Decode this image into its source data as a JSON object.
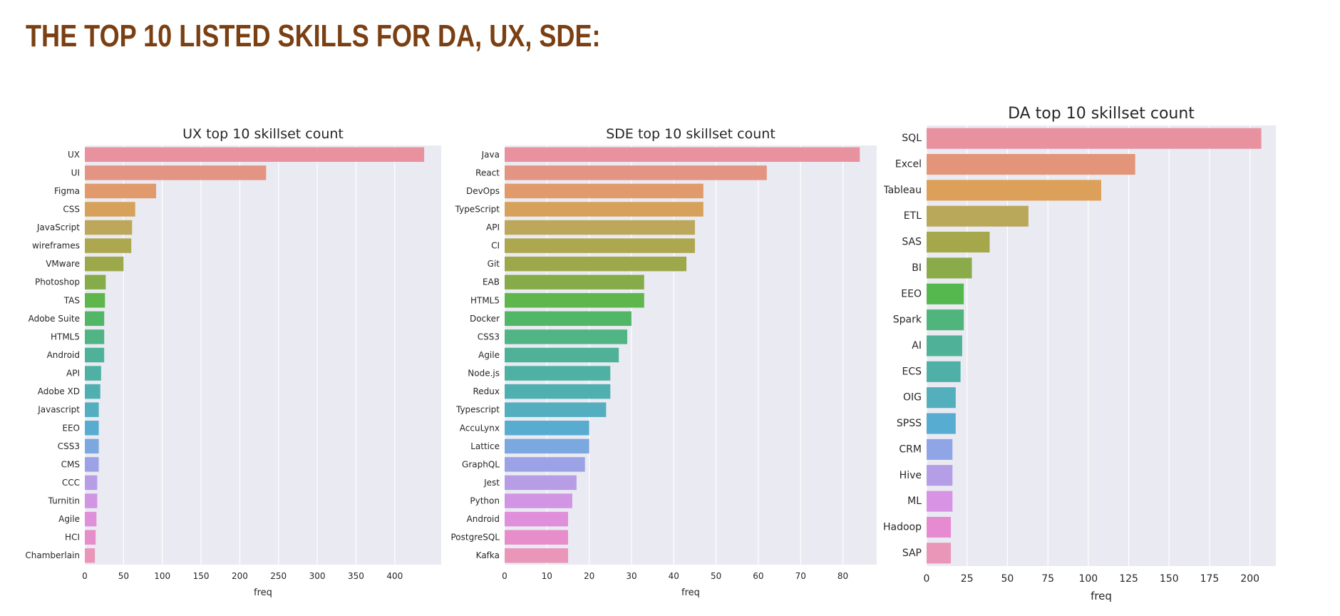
{
  "page": {
    "title": "THE TOP 10 LISTED SKILLS FOR DA, UX, SDE:"
  },
  "chart_data": [
    {
      "id": "ux",
      "type": "bar",
      "orientation": "horizontal",
      "title": "UX top 10 skillset count",
      "xlabel": "freq",
      "ylabel": "",
      "xlim": [
        0,
        460
      ],
      "xticks": [
        0,
        50,
        100,
        150,
        200,
        250,
        300,
        350,
        400
      ],
      "grid": true,
      "categories": [
        "UX",
        "UI",
        "Figma",
        "CSS",
        "JavaScript",
        "wireframes",
        "VMware",
        "Photoshop",
        "TAS",
        "Adobe Suite",
        "HTML5",
        "Android",
        "API",
        "Adobe XD",
        "Javascript",
        "EEO",
        "CSS3",
        "CMS",
        "CCC",
        "Turnitin",
        "Agile",
        "HCI",
        "Chamberlain"
      ],
      "values": [
        438,
        234,
        92,
        65,
        61,
        60,
        50,
        27,
        26,
        25,
        25,
        25,
        21,
        20,
        18,
        18,
        18,
        18,
        16,
        16,
        15,
        14,
        13
      ]
    },
    {
      "id": "sde",
      "type": "bar",
      "orientation": "horizontal",
      "title": "SDE top 10 skillset count",
      "xlabel": "freq",
      "ylabel": "",
      "xlim": [
        0,
        88
      ],
      "xticks": [
        0,
        10,
        20,
        30,
        40,
        50,
        60,
        70,
        80
      ],
      "grid": true,
      "categories": [
        "Java",
        "React",
        "DevOps",
        "TypeScript",
        "API",
        "CI",
        "Git",
        "EAB",
        "HTML5",
        "Docker",
        "CSS3",
        "Agile",
        "Node.js",
        "Redux",
        "Typescript",
        "AccuLynx",
        "Lattice",
        "GraphQL",
        "Jest",
        "Python",
        "Android",
        "PostgreSQL",
        "Kafka"
      ],
      "values": [
        84,
        62,
        47,
        47,
        45,
        45,
        43,
        33,
        33,
        30,
        29,
        27,
        25,
        25,
        24,
        20,
        20,
        19,
        17,
        16,
        15,
        15,
        15
      ]
    },
    {
      "id": "da",
      "type": "bar",
      "orientation": "horizontal",
      "title": "DA top 10 skillset count",
      "xlabel": "freq",
      "ylabel": "",
      "xlim": [
        0,
        216
      ],
      "xticks": [
        0,
        25,
        50,
        75,
        100,
        125,
        150,
        175,
        200
      ],
      "grid": true,
      "categories": [
        "SQL",
        "Excel",
        "Tableau",
        "ETL",
        "SAS",
        "BI",
        "EEO",
        "Spark",
        "AI",
        "ECS",
        "OIG",
        "SPSS",
        "CRM",
        "Hive",
        "ML",
        "Hadoop",
        "SAP"
      ],
      "values": [
        207,
        129,
        108,
        63,
        39,
        28,
        23,
        23,
        22,
        21,
        18,
        18,
        16,
        16,
        16,
        15,
        15
      ]
    }
  ],
  "theme": {
    "plot_bg": "#eaeaf2",
    "grid": "#ffffff",
    "text": "#262626",
    "title_color": "#7a3f12",
    "husl_anchor_colors": [
      "#e8919f",
      "#e39579",
      "#dca05a",
      "#b9a85a",
      "#a6a64a",
      "#8bab4a",
      "#55b84e",
      "#50b57c",
      "#4fb298",
      "#4fb0a8",
      "#52afbb",
      "#57acd2",
      "#8fa5e6",
      "#b49ee6",
      "#d893e4",
      "#e68bd1",
      "#e996b9"
    ]
  }
}
